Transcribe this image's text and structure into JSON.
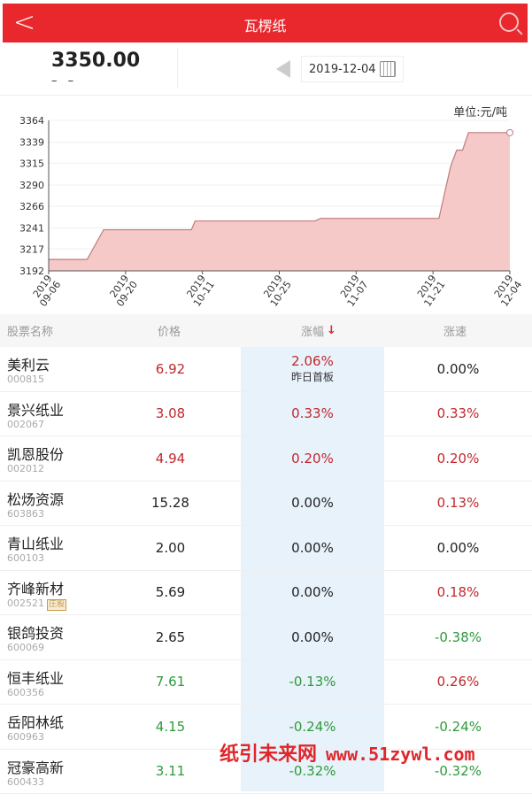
{
  "header": {
    "title": "瓦楞纸",
    "back_icon": "chevron-left-icon",
    "search_icon": "search-icon"
  },
  "price": {
    "value": "3350.00",
    "change": "– –",
    "date": "2019-12-04"
  },
  "chart_data": {
    "type": "area",
    "unit_label": "单位:元/吨",
    "ylim": [
      3192,
      3364
    ],
    "yticks": [
      3192,
      3217,
      3241,
      3266,
      3290,
      3315,
      3339,
      3364
    ],
    "xticks": [
      "2019-09-06",
      "2019-09-20",
      "2019-10-11",
      "2019-10-25",
      "2019-11-07",
      "2019-11-21",
      "2019-12-04"
    ],
    "grid": true,
    "color": "#f6c9c9",
    "line_color": "#c07a7a",
    "points": [
      [
        "2019-09-06",
        3205
      ],
      [
        "2019-09-13",
        3205
      ],
      [
        "2019-09-16",
        3239
      ],
      [
        "2019-10-08",
        3239
      ],
      [
        "2019-10-09",
        3249
      ],
      [
        "2019-10-31",
        3249
      ],
      [
        "2019-11-01",
        3252
      ],
      [
        "2019-11-22",
        3252
      ],
      [
        "2019-11-24",
        3312
      ],
      [
        "2019-11-25",
        3330
      ],
      [
        "2019-11-26",
        3330
      ],
      [
        "2019-11-27",
        3350
      ],
      [
        "2019-12-04",
        3350
      ]
    ]
  },
  "table": {
    "headers": [
      "股票名称",
      "价格",
      "涨幅",
      "涨速"
    ],
    "sort_icon": "arrow-down-icon",
    "rows": [
      {
        "name": "美利云",
        "code": "000815",
        "price": "6.92",
        "pd": "up",
        "change": "2.06%",
        "cd": "up",
        "note": "昨日首板",
        "speed": "0.00%",
        "sd": "flat"
      },
      {
        "name": "景兴纸业",
        "code": "002067",
        "price": "3.08",
        "pd": "up",
        "change": "0.33%",
        "cd": "up",
        "speed": "0.33%",
        "sd": "up"
      },
      {
        "name": "凯恩股份",
        "code": "002012",
        "price": "4.94",
        "pd": "up",
        "change": "0.20%",
        "cd": "up",
        "speed": "0.20%",
        "sd": "up"
      },
      {
        "name": "松炀资源",
        "code": "603863",
        "price": "15.28",
        "pd": "flat",
        "change": "0.00%",
        "cd": "flat",
        "speed": "0.13%",
        "sd": "up"
      },
      {
        "name": "青山纸业",
        "code": "600103",
        "price": "2.00",
        "pd": "flat",
        "change": "0.00%",
        "cd": "flat",
        "speed": "0.00%",
        "sd": "flat"
      },
      {
        "name": "齐峰新材",
        "code": "002521",
        "badge": "庄股",
        "price": "5.69",
        "pd": "flat",
        "change": "0.00%",
        "cd": "flat",
        "speed": "0.18%",
        "sd": "up"
      },
      {
        "name": "银鸽投资",
        "code": "600069",
        "price": "2.65",
        "pd": "flat",
        "change": "0.00%",
        "cd": "flat",
        "speed": "-0.38%",
        "sd": "down"
      },
      {
        "name": "恒丰纸业",
        "code": "600356",
        "price": "7.61",
        "pd": "down",
        "change": "-0.13%",
        "cd": "down",
        "speed": "0.26%",
        "sd": "up"
      },
      {
        "name": "岳阳林纸",
        "code": "600963",
        "price": "4.15",
        "pd": "down",
        "change": "-0.24%",
        "cd": "down",
        "speed": "-0.24%",
        "sd": "down"
      },
      {
        "name": "冠豪高新",
        "code": "600433",
        "price": "3.11",
        "pd": "down",
        "change": "-0.32%",
        "cd": "down",
        "speed": "-0.32%",
        "sd": "down"
      }
    ]
  },
  "watermark": {
    "name": "纸引未来网",
    "url": "www.51zywl.com"
  }
}
